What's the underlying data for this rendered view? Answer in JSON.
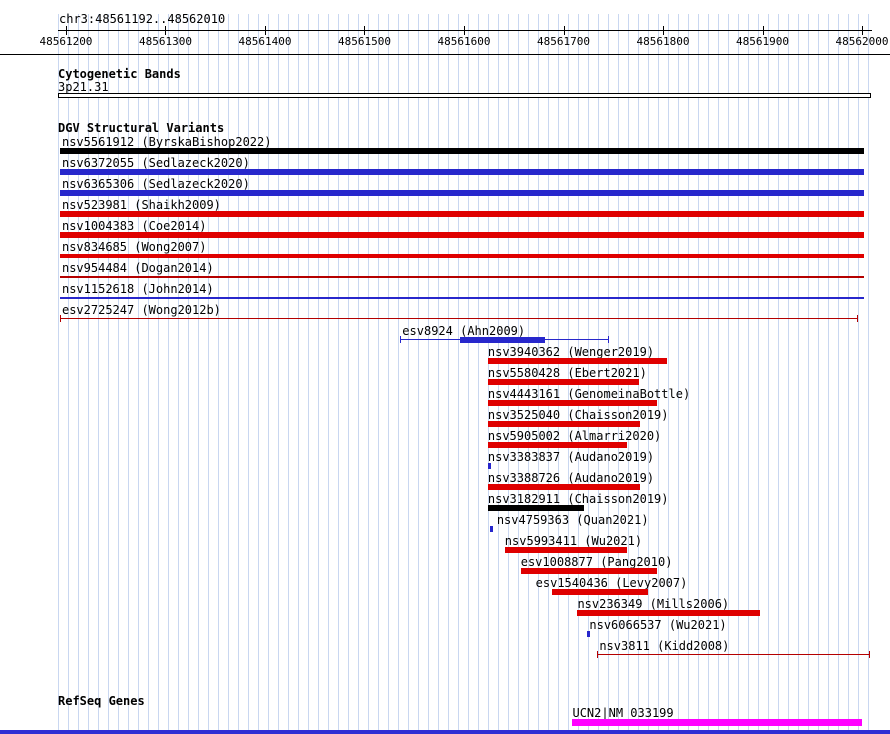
{
  "title": "chr3:48561192..48562010",
  "region": {
    "chrom": "chr3",
    "start": 48561192,
    "end": 48562010
  },
  "ruler": {
    "ticks": [
      48561200,
      48561300,
      48561400,
      48561500,
      48561600,
      48561700,
      48561800,
      48561900,
      48562000
    ]
  },
  "sections": {
    "cytogenetic_header": "Cytogenetic Bands",
    "cytogenetic_band": "3p21.31",
    "dgv_header": "DGV Structural Variants",
    "refseq_header": "RefSeq Genes"
  },
  "colors": {
    "red": "#df0000",
    "dark_red": "#b40000",
    "blue": "#2727cc",
    "black": "#000000",
    "magenta": "#ff00ff",
    "grid_line": "#c9d7f1",
    "bottom_bar": "#2f2fd4"
  },
  "variants": [
    {
      "label": "nsv5561912 (ByrskaBishop2022)",
      "start": 48561194,
      "end": 48562002,
      "style": "thick",
      "color": "black",
      "label_at": 48561196
    },
    {
      "label": "nsv6372055 (Sedlazeck2020)",
      "start": 48561194,
      "end": 48562002,
      "style": "thick",
      "color": "blue",
      "label_at": 48561196
    },
    {
      "label": "nsv6365306 (Sedlazeck2020)",
      "start": 48561194,
      "end": 48562002,
      "style": "thick",
      "color": "blue",
      "label_at": 48561196
    },
    {
      "label": "nsv523981 (Shaikh2009)",
      "start": 48561194,
      "end": 48562002,
      "style": "thick",
      "color": "red",
      "label_at": 48561196
    },
    {
      "label": "nsv1004383 (Coe2014)",
      "start": 48561194,
      "end": 48562002,
      "style": "thick",
      "color": "red",
      "label_at": 48561196
    },
    {
      "label": "nsv834685 (Wong2007)",
      "start": 48561194,
      "end": 48562002,
      "style": "medium",
      "color": "red",
      "label_at": 48561196
    },
    {
      "label": "nsv954484 (Dogan2014)",
      "start": 48561194,
      "end": 48562002,
      "style": "thin",
      "color": "dark_red",
      "label_at": 48561196
    },
    {
      "label": "nsv1152618 (John2014)",
      "start": 48561194,
      "end": 48562002,
      "style": "thin",
      "color": "blue",
      "label_at": 48561196
    },
    {
      "label": "esv2725247 (Wong2012b)",
      "start": 48561194,
      "end": 48561996,
      "style": "bracket",
      "color": "dark_red",
      "label_at": 48561196
    },
    {
      "label": "esv8924 (Ahn2009)",
      "start": 48561536,
      "end": 48561746,
      "style": "range",
      "color": "blue",
      "label_at": 48561538,
      "thick_start": 48561596,
      "thick_end": 48561681
    },
    {
      "label": "nsv3940362 (Wenger2019)",
      "start": 48561624,
      "end": 48561804,
      "style": "thick",
      "color": "red",
      "label_at": 48561624
    },
    {
      "label": "nsv5580428 (Ebert2021)",
      "start": 48561624,
      "end": 48561776,
      "style": "thick",
      "color": "red",
      "label_at": 48561624
    },
    {
      "label": "nsv4443161 (GenomeinaBottle)",
      "start": 48561624,
      "end": 48561794,
      "style": "thick",
      "color": "red",
      "label_at": 48561624
    },
    {
      "label": "nsv3525040 (Chaisson2019)",
      "start": 48561624,
      "end": 48561777,
      "style": "thick",
      "color": "red",
      "label_at": 48561624
    },
    {
      "label": "nsv5905002 (Almarri2020)",
      "start": 48561624,
      "end": 48561764,
      "style": "thick",
      "color": "red",
      "label_at": 48561624
    },
    {
      "label": "nsv3383837 (Audano2019)",
      "start": 48561624,
      "end": 48561627,
      "style": "point",
      "color": "blue",
      "label_at": 48561624
    },
    {
      "label": "nsv3388726 (Audano2019)",
      "start": 48561624,
      "end": 48561777,
      "style": "thick",
      "color": "red",
      "label_at": 48561624
    },
    {
      "label": "nsv3182911 (Chaisson2019)",
      "start": 48561624,
      "end": 48561721,
      "style": "thick",
      "color": "black",
      "label_at": 48561624
    },
    {
      "label": "nsv4759363 (Quan2021)",
      "start": 48561626,
      "end": 48561629,
      "style": "point",
      "color": "blue",
      "label_at": 48561633
    },
    {
      "label": "nsv5993411 (Wu2021)",
      "start": 48561641,
      "end": 48561764,
      "style": "thick",
      "color": "red",
      "label_at": 48561641
    },
    {
      "label": "esv1008877 (Pang2010)",
      "start": 48561657,
      "end": 48561794,
      "style": "thick",
      "color": "red",
      "label_at": 48561657
    },
    {
      "label": "esv1540436 (Levy2007)",
      "start": 48561688,
      "end": 48561785,
      "style": "thick",
      "color": "red",
      "label_at": 48561672
    },
    {
      "label": "nsv236349 (Mills2006)",
      "start": 48561714,
      "end": 48561897,
      "style": "thick",
      "color": "red",
      "label_at": 48561714
    },
    {
      "label": "nsv6066537 (Wu2021)",
      "start": 48561724,
      "end": 48561727,
      "style": "point",
      "color": "blue",
      "label_at": 48561726
    },
    {
      "label": "nsv3811 (Kidd2008)",
      "start": 48561734,
      "end": 48562008,
      "style": "bracket",
      "color": "dark_red",
      "label_at": 48561736
    }
  ],
  "genes": [
    {
      "label": "UCN2|NM_033199",
      "start": 48561709,
      "end": 48562000,
      "style": "gene",
      "color": "magenta",
      "label_at": 48561709
    }
  ]
}
